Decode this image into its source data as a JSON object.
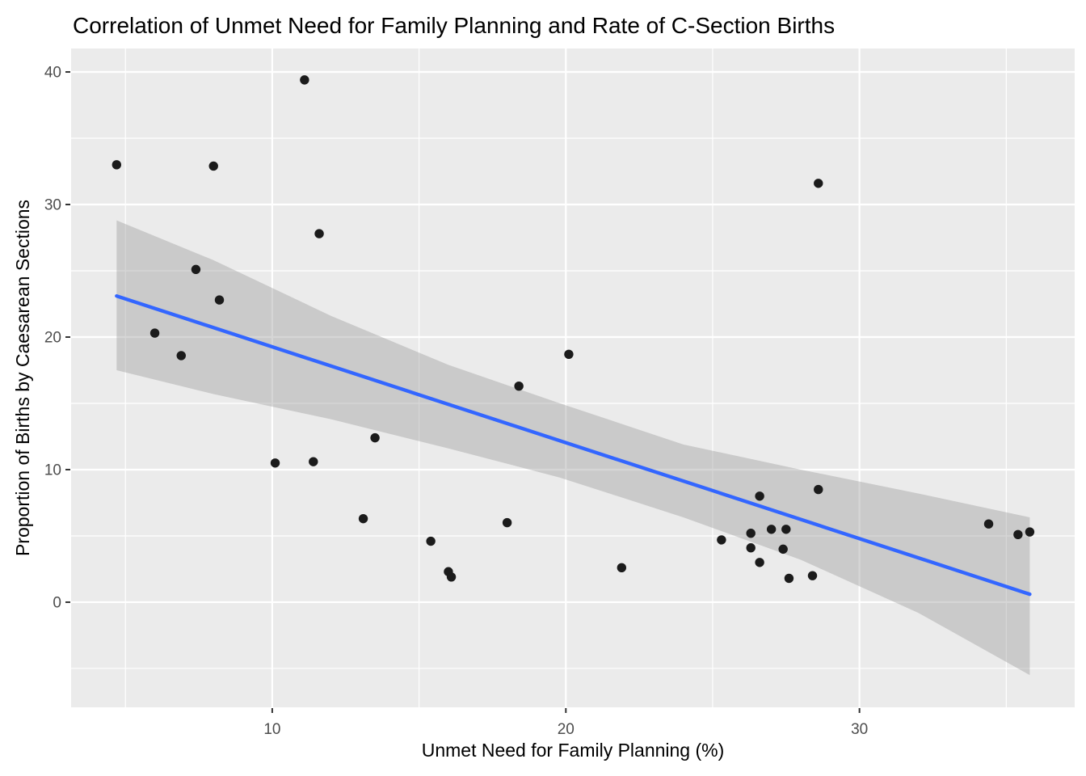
{
  "chart": {
    "title": "Correlation of Unmet Need for Family Planning and Rate of C-Section Births",
    "xlabel": "Unmet Need for Family Planning (%)",
    "ylabel": "Proportion of Births by Caesarean Sections"
  },
  "chart_data": {
    "type": "scatter",
    "title": "Correlation of Unmet Need for Family Planning and Rate of C-Section Births",
    "xlabel": "Unmet Need for Family Planning (%)",
    "ylabel": "Proportion of Births by Caesarean Sections",
    "xlim": [
      3.15,
      37.33
    ],
    "ylim": [
      -7.93,
      41.77
    ],
    "x_ticks": [
      10,
      20,
      30
    ],
    "x_minor_ticks": [
      5,
      15,
      25,
      35
    ],
    "y_ticks": [
      0,
      10,
      20,
      30,
      40
    ],
    "y_minor_ticks": [
      -5,
      5,
      15,
      25,
      35
    ],
    "grid": true,
    "legend": false,
    "points": [
      [
        4.7,
        33.0
      ],
      [
        8.0,
        32.9
      ],
      [
        11.1,
        39.4
      ],
      [
        11.6,
        27.8
      ],
      [
        7.4,
        25.1
      ],
      [
        8.2,
        22.8
      ],
      [
        6.0,
        20.3
      ],
      [
        6.9,
        18.6
      ],
      [
        20.1,
        18.7
      ],
      [
        18.4,
        16.3
      ],
      [
        28.6,
        31.6
      ],
      [
        13.5,
        12.4
      ],
      [
        10.1,
        10.5
      ],
      [
        11.4,
        10.6
      ],
      [
        13.1,
        6.3
      ],
      [
        18.0,
        6.0
      ],
      [
        15.4,
        4.6
      ],
      [
        16.0,
        2.3
      ],
      [
        16.1,
        1.9
      ],
      [
        21.9,
        2.6
      ],
      [
        26.6,
        8.0
      ],
      [
        28.6,
        8.5
      ],
      [
        27.0,
        5.5
      ],
      [
        27.5,
        5.5
      ],
      [
        26.3,
        5.2
      ],
      [
        25.3,
        4.7
      ],
      [
        26.3,
        4.1
      ],
      [
        27.4,
        4.0
      ],
      [
        26.6,
        3.0
      ],
      [
        27.6,
        1.8
      ],
      [
        28.4,
        2.0
      ],
      [
        34.4,
        5.9
      ],
      [
        35.4,
        5.1
      ],
      [
        35.8,
        5.3
      ]
    ],
    "regression_line": {
      "x1": 4.7,
      "y1": 23.1,
      "x2": 35.8,
      "y2": 0.6
    },
    "confidence_band": {
      "x": [
        4.7,
        8.0,
        12.0,
        16.0,
        19.8,
        24.0,
        28.0,
        32.0,
        35.8
      ],
      "upper": [
        28.8,
        25.8,
        21.6,
        17.9,
        15.0,
        11.9,
        10.0,
        8.2,
        6.4
      ],
      "lower": [
        17.5,
        15.7,
        13.8,
        11.6,
        9.4,
        6.4,
        3.2,
        -0.8,
        -5.5
      ]
    },
    "colors": {
      "panel_background": "#EBEBEB",
      "grid": "#FFFFFF",
      "band_fill": "#999999",
      "band_opacity": "0.4",
      "regression_line": "#3366FF",
      "point": "#1B1B1B",
      "tick_label": "#4D4D4D",
      "tick_mark": "#333333",
      "axis_title": "#000000",
      "title": "#000000"
    }
  }
}
